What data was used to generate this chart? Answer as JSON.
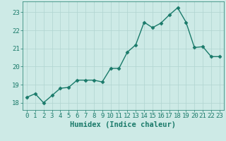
{
  "x": [
    0,
    1,
    2,
    3,
    4,
    5,
    6,
    7,
    8,
    9,
    10,
    11,
    12,
    13,
    14,
    15,
    16,
    17,
    18,
    19,
    20,
    21,
    22,
    23
  ],
  "y": [
    18.3,
    18.5,
    18.0,
    18.4,
    18.8,
    18.85,
    19.25,
    19.25,
    19.25,
    19.15,
    19.9,
    19.9,
    20.8,
    21.2,
    22.45,
    22.15,
    22.4,
    22.85,
    23.25,
    22.45,
    21.05,
    21.1,
    20.55,
    20.55
  ],
  "line_color": "#1a7a6a",
  "marker": "D",
  "marker_size": 2.5,
  "background_color": "#cdeae6",
  "grid_color": "#b0d4d0",
  "title": "",
  "xlabel": "Humidex (Indice chaleur)",
  "ylabel": "",
  "xlim": [
    -0.5,
    23.5
  ],
  "ylim": [
    17.6,
    23.6
  ],
  "yticks": [
    18,
    19,
    20,
    21,
    22,
    23
  ],
  "xticks": [
    0,
    1,
    2,
    3,
    4,
    5,
    6,
    7,
    8,
    9,
    10,
    11,
    12,
    13,
    14,
    15,
    16,
    17,
    18,
    19,
    20,
    21,
    22,
    23
  ],
  "tick_color": "#1a7a6a",
  "xlabel_fontsize": 7.5,
  "tick_fontsize": 6.5,
  "line_width": 1.0,
  "spine_color": "#1a7a6a"
}
